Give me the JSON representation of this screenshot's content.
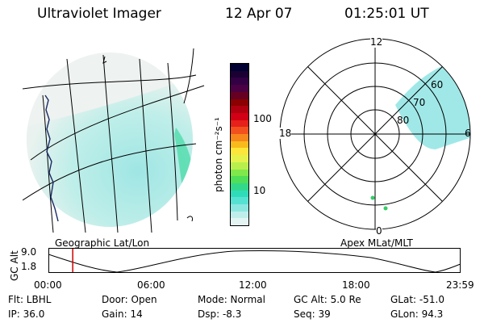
{
  "header": {
    "instrument": "Ultraviolet Imager",
    "date": "12 Apr 07",
    "time": "01:25:01 UT"
  },
  "colorbar": {
    "unit_label": "photon cm⁻²s⁻¹",
    "ticks": [
      "100",
      "10"
    ],
    "colors": [
      "#000033",
      "#1a0033",
      "#330044",
      "#4b0044",
      "#660022",
      "#8b0000",
      "#b00010",
      "#d10015",
      "#e6201a",
      "#f2501e",
      "#f7861c",
      "#f9ba1c",
      "#fde63a",
      "#e6f24c",
      "#b9ef4d",
      "#7fe84b",
      "#4fdf58",
      "#33d98a",
      "#2fdcb9",
      "#56e2d2",
      "#8ce7e0",
      "#bfeeea",
      "#e4f4f2"
    ]
  },
  "left_panel": {
    "label": "Geographic Lat/Lon",
    "glow_color": "#9fe6e4"
  },
  "polar_plot": {
    "label": "Apex MLat/MLT",
    "mlt_labels": {
      "top": "12",
      "left": "18",
      "right": "6",
      "bottom": "0"
    },
    "lat_labels": [
      "60",
      "70",
      "80"
    ],
    "glow_color": "#8fe4e4"
  },
  "orbit": {
    "axis_label": "GC Alt",
    "y_ticks": [
      "9.0",
      "1.8"
    ],
    "x_ticks": [
      "00:00",
      "06:00",
      "12:00",
      "18:00",
      "23:59"
    ],
    "marker_color": "#cc0000",
    "marker_time_hours": 1.417
  },
  "info": {
    "flt": "Flt: LBHL",
    "ip": "IP: 36.0",
    "door": "Door: Open",
    "gain": "Gain: 14",
    "mode": "Mode: Normal",
    "dsp": "Dsp:    -8.3",
    "gcalt": "GC Alt: 5.0 Re",
    "seq": "Seq: 39",
    "glat": "GLat: -51.0",
    "glon": "GLon: 94.3"
  }
}
